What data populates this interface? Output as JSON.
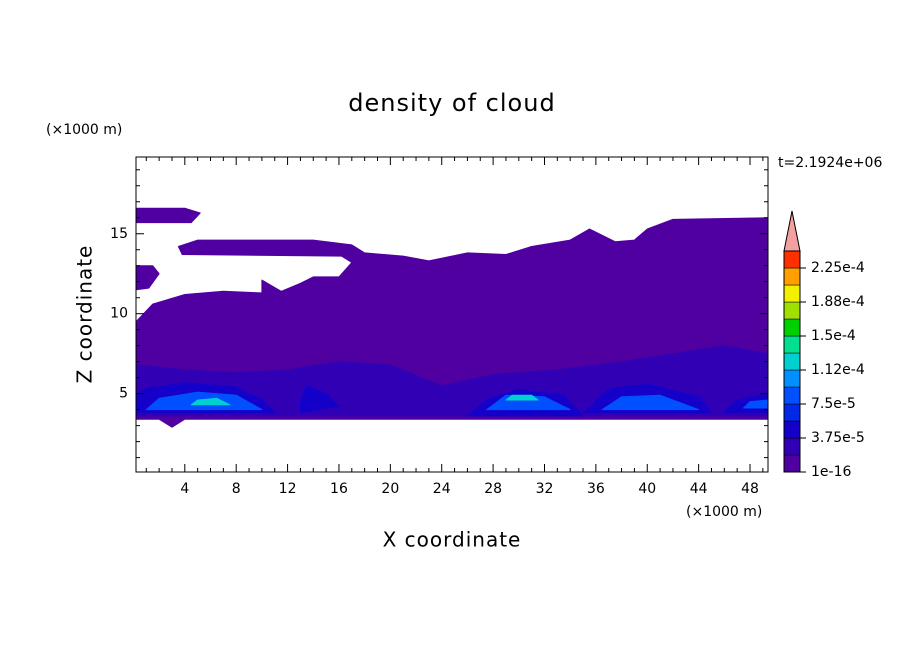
{
  "chart_data": {
    "type": "contour",
    "title": "density of cloud",
    "x_label": "X coordinate",
    "y_label": "Z coordinate",
    "x_unit": "(×1000 m)",
    "y_unit": "(×1000 m)",
    "annotation": "t=2.1924e+06",
    "xlim": [
      0.2,
      49.4
    ],
    "ylim": [
      0.1,
      19.8
    ],
    "xticks": [
      4,
      8,
      12,
      16,
      20,
      24,
      28,
      32,
      36,
      40,
      44,
      48
    ],
    "yticks": [
      5,
      10,
      15
    ],
    "xminorticks": [
      1,
      2,
      3,
      5,
      6,
      7,
      9,
      10,
      11,
      13,
      14,
      15,
      17,
      18,
      19,
      21,
      22,
      23,
      25,
      26,
      27,
      29,
      30,
      31,
      33,
      34,
      35,
      37,
      38,
      39,
      41,
      42,
      43,
      45,
      46,
      47,
      49
    ],
    "yminorticks": [
      1,
      2,
      3,
      4,
      6,
      7,
      8,
      9,
      11,
      12,
      13,
      14,
      16,
      17,
      18,
      19
    ],
    "colorbar": {
      "levels": [
        1e-16,
        1.875e-05,
        3.75e-05,
        5.625e-05,
        7.5e-05,
        9.375e-05,
        0.0001125,
        0.00013125,
        0.00015,
        0.00016875,
        0.0001875,
        0.00020625,
        0.000225,
        0.00024375
      ],
      "colors": [
        "#5000a0",
        "#3200b4",
        "#1400c8",
        "#0028e6",
        "#0050ff",
        "#0090ff",
        "#00d0d0",
        "#00e090",
        "#00d000",
        "#a0e000",
        "#f0f000",
        "#ffa000",
        "#ff3000"
      ],
      "extend_color": "#f4a0a0",
      "ticks": [
        {
          "value": 1e-16,
          "label": "1e-16"
        },
        {
          "value": 3.75e-05,
          "label": "3.75e-5"
        },
        {
          "value": 7.5e-05,
          "label": "7.5e-5"
        },
        {
          "value": 0.0001125,
          "label": "1.12e-4"
        },
        {
          "value": 0.00015,
          "label": "1.5e-4"
        },
        {
          "value": 0.0001875,
          "label": "1.88e-4"
        },
        {
          "value": 0.000225,
          "label": "2.25e-4"
        }
      ]
    },
    "regions": [
      {
        "level": 1e-16,
        "x": [
          0.2,
          1.5,
          4,
          7,
          10,
          10,
          11.5,
          13,
          14,
          16,
          17,
          16.2,
          3.8,
          3.5,
          5,
          14,
          17,
          18,
          21,
          23,
          26,
          29,
          31,
          34,
          35.5,
          37.5,
          39,
          40,
          42,
          49.4,
          49.4,
          47,
          45,
          43,
          43,
          40,
          36,
          35,
          33,
          30,
          27,
          26,
          24,
          22,
          20,
          18,
          16,
          14,
          12,
          10,
          8,
          6,
          4,
          3,
          2,
          0.2
        ],
        "y": [
          9.5,
          10.6,
          11.2,
          11.4,
          11.3,
          12.1,
          11.4,
          11.9,
          12.3,
          12.3,
          13.2,
          13.6,
          13.7,
          14.2,
          14.6,
          14.6,
          14.3,
          13.8,
          13.6,
          13.3,
          13.8,
          13.7,
          14.2,
          14.6,
          15.3,
          14.5,
          14.6,
          15.3,
          15.9,
          16,
          3.4,
          3.4,
          3.4,
          3.4,
          3.4,
          3.4,
          3.4,
          3.4,
          3.4,
          3.4,
          3.4,
          3.4,
          3.4,
          3.4,
          3.4,
          3.4,
          3.4,
          3.4,
          3.4,
          3.4,
          3.4,
          3.4,
          3.4,
          2.9,
          3.4,
          3.4
        ]
      },
      {
        "level": 1e-16,
        "x": [
          0.2,
          4.5,
          5.2,
          4,
          0.2
        ],
        "y": [
          15.7,
          15.7,
          16.3,
          16.6,
          16.6
        ]
      },
      {
        "level": 1e-16,
        "x": [
          0.2,
          1.2,
          2,
          1.5,
          0.2
        ],
        "y": [
          11.5,
          11.6,
          12.5,
          13,
          13
        ]
      },
      {
        "level": 1.875e-05,
        "x": [
          0.2,
          49.4,
          49.4,
          46,
          42,
          38,
          33,
          28,
          24,
          20,
          16,
          12,
          8,
          4,
          0.2
        ],
        "y": [
          3.6,
          3.6,
          7.5,
          8,
          7.5,
          7,
          6.5,
          6.2,
          5.5,
          6.8,
          7,
          6.5,
          6.3,
          6.5,
          6.8
        ]
      },
      {
        "level": 3.75e-05,
        "x": [
          0.2,
          11,
          10,
          8,
          4,
          1,
          0.2
        ],
        "y": [
          3.8,
          3.8,
          4.6,
          5.4,
          5.7,
          5.3,
          5
        ]
      },
      {
        "level": 3.75e-05,
        "x": [
          13,
          16,
          15,
          13.5,
          13
        ],
        "y": [
          3.8,
          4.2,
          5,
          5.5,
          4.5
        ]
      },
      {
        "level": 3.75e-05,
        "x": [
          26,
          35,
          33.5,
          30,
          27.5
        ],
        "y": [
          3.6,
          3.6,
          4.9,
          5.3,
          4.6
        ]
      },
      {
        "level": 3.75e-05,
        "x": [
          35,
          45,
          44,
          40,
          37
        ],
        "y": [
          3.8,
          3.8,
          4.8,
          5.6,
          5.3
        ]
      },
      {
        "level": 3.75e-05,
        "x": [
          46,
          49.4,
          49.4,
          47
        ],
        "y": [
          3.8,
          3.8,
          5,
          4.6
        ]
      },
      {
        "level": 7.5e-05,
        "x": [
          1,
          10,
          8,
          5,
          2
        ],
        "y": [
          4,
          4,
          4.9,
          5.1,
          4.7
        ]
      },
      {
        "level": 7.5e-05,
        "x": [
          27.5,
          34,
          32,
          29
        ],
        "y": [
          4,
          4,
          4.8,
          4.9
        ]
      },
      {
        "level": 7.5e-05,
        "x": [
          36.5,
          44,
          41,
          38
        ],
        "y": [
          4,
          4,
          4.9,
          4.8
        ]
      },
      {
        "level": 7.5e-05,
        "x": [
          47.5,
          49.4,
          49.4,
          48
        ],
        "y": [
          4.1,
          4.1,
          4.6,
          4.5
        ]
      },
      {
        "level": 0.0001125,
        "x": [
          4.5,
          7.5,
          6.5,
          5
        ],
        "y": [
          4.3,
          4.3,
          4.7,
          4.6
        ]
      },
      {
        "level": 0.0001125,
        "x": [
          29,
          31.5,
          31,
          29.5
        ],
        "y": [
          4.6,
          4.6,
          4.9,
          4.9
        ]
      }
    ]
  }
}
